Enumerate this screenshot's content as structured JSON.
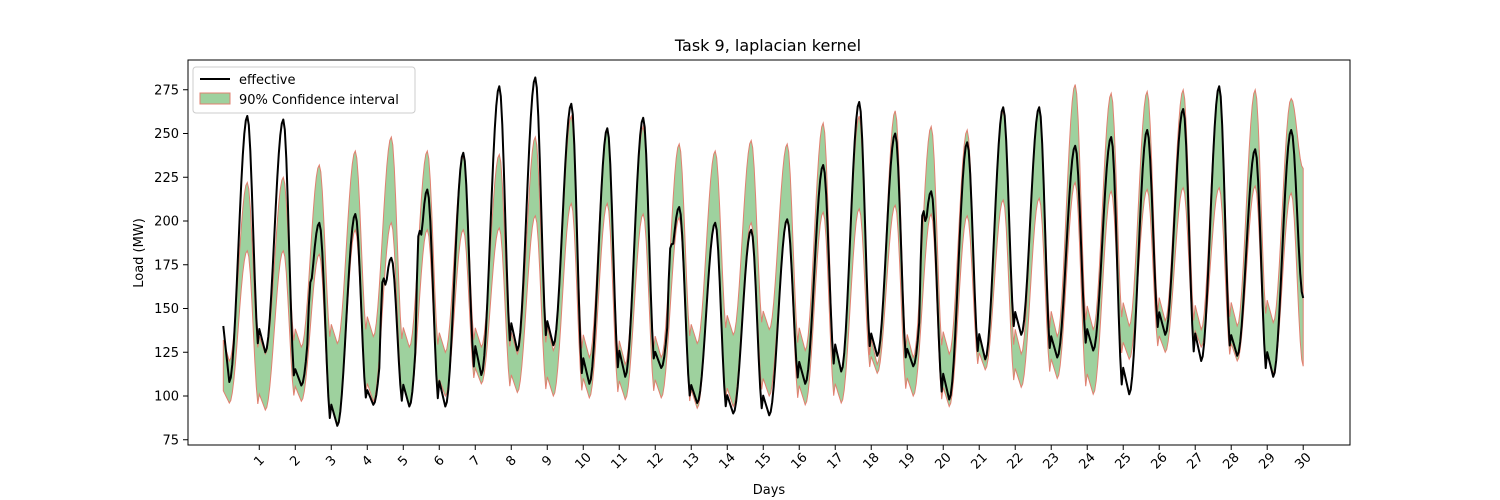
{
  "chart_data": {
    "type": "line",
    "title": "Task 9, laplacian kernel",
    "xlabel": "Days",
    "ylabel": "Load (MW)",
    "xlim": [
      -0.98,
      31.3
    ],
    "ylim": [
      72,
      292
    ],
    "x_ticks": [
      1,
      2,
      3,
      4,
      5,
      6,
      7,
      8,
      9,
      10,
      11,
      12,
      13,
      14,
      15,
      16,
      17,
      18,
      19,
      20,
      21,
      22,
      23,
      24,
      25,
      26,
      27,
      28,
      29,
      30
    ],
    "x_tick_labels": [
      "1",
      "2",
      "3",
      "4",
      "5",
      "6",
      "7",
      "8",
      "9",
      "10",
      "11",
      "12",
      "13",
      "14",
      "15",
      "16",
      "17",
      "18",
      "19",
      "20",
      "21",
      "22",
      "23",
      "24",
      "25",
      "26",
      "27",
      "28",
      "29",
      "30"
    ],
    "x_tick_rotation": 45,
    "y_ticks": [
      75,
      100,
      125,
      150,
      175,
      200,
      225,
      250,
      275
    ],
    "y_tick_labels": [
      "75",
      "100",
      "125",
      "150",
      "175",
      "200",
      "225",
      "250",
      "275"
    ],
    "grid": false,
    "legend_position": "top-left",
    "legend": [
      {
        "label": "effective",
        "kind": "line",
        "color": "#000000"
      },
      {
        "label": "90% Confidence interval",
        "kind": "patch",
        "fill": "#5db35d",
        "edge": "#e08070"
      }
    ],
    "effective_series": {
      "name": "effective",
      "color": "#000000",
      "daily_minima": [
        108,
        125,
        106,
        83,
        95,
        94,
        94,
        112,
        126,
        129,
        107,
        111,
        116,
        96,
        90,
        89,
        107,
        114,
        123,
        117,
        98,
        121,
        135,
        122,
        126,
        101,
        135,
        120,
        123,
        111
      ],
      "daily_peaks": [
        260,
        258,
        199,
        204,
        179,
        218,
        239,
        277,
        282,
        267,
        253,
        259,
        208,
        199,
        195,
        201,
        232,
        268,
        250,
        217,
        245,
        265,
        265,
        243,
        248,
        252,
        264,
        277,
        241,
        252
      ],
      "daily_shoulders": [
        0,
        0,
        168,
        0,
        172,
        200,
        0,
        0,
        0,
        0,
        0,
        0,
        190,
        0,
        0,
        0,
        0,
        0,
        0,
        212,
        0,
        0,
        0,
        0,
        0,
        0,
        0,
        0,
        0,
        0
      ],
      "start_value": 140,
      "end_value": 156
    },
    "confidence_interval": {
      "name": "90% Confidence interval",
      "fill": "#5db35d",
      "edge": "#e08070",
      "lower_minima": [
        96,
        92,
        97,
        84,
        97,
        95,
        100,
        107,
        102,
        100,
        99,
        98,
        99,
        93,
        94,
        100,
        95,
        96,
        113,
        100,
        94,
        115,
        105,
        110,
        101,
        121,
        125,
        128,
        120,
        113
      ],
      "lower_peaks": [
        183,
        183,
        181,
        195,
        199,
        195,
        195,
        196,
        203,
        210,
        210,
        204,
        202,
        199,
        199,
        200,
        205,
        207,
        209,
        204,
        203,
        212,
        213,
        222,
        217,
        218,
        219,
        219,
        220,
        216
      ],
      "upper_minima": [
        120,
        124,
        128,
        130,
        134,
        128,
        125,
        128,
        124,
        126,
        122,
        118,
        122,
        130,
        135,
        138,
        126,
        114,
        118,
        122,
        124,
        120,
        124,
        134,
        138,
        140,
        143,
        138,
        140,
        142
      ],
      "upper_peaks": [
        222,
        225,
        232,
        240,
        248,
        240,
        237,
        238,
        248,
        260,
        252,
        254,
        244,
        240,
        246,
        244,
        256,
        260,
        263,
        254,
        252,
        263,
        265,
        278,
        273,
        274,
        275,
        276,
        275,
        270
      ],
      "start_lower": 103,
      "start_upper": 132,
      "end_lower": 117,
      "end_upper": 230
    }
  }
}
